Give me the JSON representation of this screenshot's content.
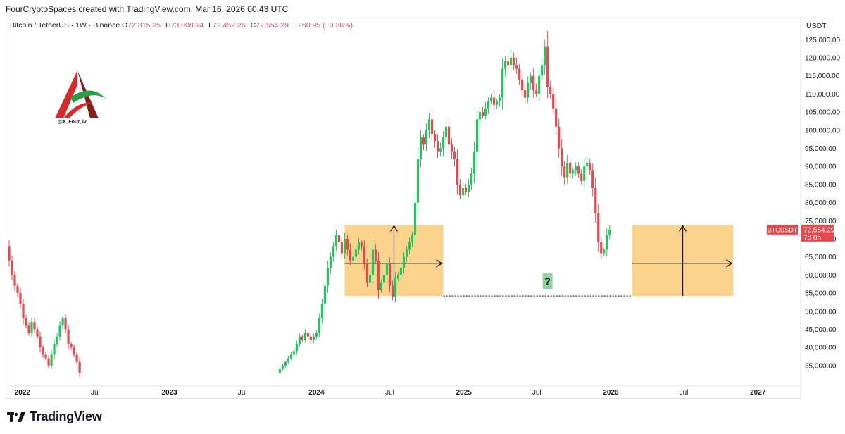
{
  "header": {
    "attribution": "FourCryptoSpaces created with TradingView.com, Mar 16, 2026 00:43 UTC"
  },
  "legend": {
    "symbol": "Bitcoin / TetherUS · 1W · Binance",
    "open_label": "O",
    "open": "72,815.25",
    "high_label": "H",
    "high": "73,008.94",
    "low_label": "L",
    "low": "72,452.26",
    "close_label": "C",
    "close": "72,554.29",
    "change": "−260.95 (−0.36%)"
  },
  "logo": {
    "handle": "@X_Four_iv"
  },
  "footer": {
    "brand": "TradingView"
  },
  "colors": {
    "up": "#26a69a",
    "up_bright": "#22c55e",
    "down": "#e5484d",
    "zone": "#fcd38d",
    "axis_text": "#131722"
  },
  "chart_data": {
    "type": "candlestick",
    "currency": "USDT",
    "ylim": [
      30500,
      127000
    ],
    "y_ticks": [
      35000,
      40000,
      45000,
      50000,
      55000,
      60000,
      65000,
      70000,
      75000,
      80000,
      85000,
      90000,
      95000,
      100000,
      105000,
      110000,
      115000,
      120000,
      125000
    ],
    "y_tick_labels": [
      "35,000.00",
      "40,000.00",
      "45,000.00",
      "50,000.00",
      "55,000.00",
      "60,000.00",
      "65,000.00",
      "70,000.00",
      "75,000.00",
      "80,000.00",
      "85,000.00",
      "90,000.00",
      "95,000.00",
      "100,000.00",
      "105,000.00",
      "110,000.00",
      "115,000.00",
      "120,000.00",
      "125,000.00"
    ],
    "x_ticks": [
      {
        "label": "2022",
        "date": "2022-01-01",
        "bold": true
      },
      {
        "label": "Jul",
        "date": "2022-07-01",
        "bold": false
      },
      {
        "label": "2023",
        "date": "2023-01-01",
        "bold": true
      },
      {
        "label": "Jul",
        "date": "2023-07-01",
        "bold": false
      },
      {
        "label": "2024",
        "date": "2024-01-01",
        "bold": true
      },
      {
        "label": "Jul",
        "date": "2024-07-01",
        "bold": false
      },
      {
        "label": "2025",
        "date": "2025-01-01",
        "bold": true
      },
      {
        "label": "Jul",
        "date": "2025-07-01",
        "bold": false
      },
      {
        "label": "2026",
        "date": "2026-01-01",
        "bold": true
      },
      {
        "label": "Jul",
        "date": "2026-07-01",
        "bold": false
      },
      {
        "label": "2027",
        "date": "2027-01-01",
        "bold": true
      }
    ],
    "x_range": [
      "2021-11-22",
      "2027-04-12"
    ],
    "segments": [
      {
        "start": "2021-11-22",
        "points": [
          68000,
          64000,
          60000,
          57000,
          55000,
          52000,
          48000,
          46000,
          44000,
          47000,
          45000,
          43000,
          40000,
          38000,
          37000,
          35000,
          38000,
          41000,
          43000,
          46000,
          48000,
          45000,
          41000,
          40000,
          38000,
          36000,
          33000
        ]
      },
      {
        "start": "2023-09-25",
        "points": [
          33000,
          34000,
          35000,
          36000,
          37000,
          38000,
          39000,
          41000,
          43000,
          42000,
          44000,
          43000,
          42000,
          43000,
          44000,
          48000,
          52000,
          57000,
          62000,
          65000,
          68000,
          71000,
          69000,
          66000,
          70000,
          67000,
          64000,
          65000,
          67000,
          69000,
          68000,
          63000,
          58000,
          60000,
          67000,
          64000,
          56000,
          58000,
          60000,
          63000,
          57000,
          54000,
          59000,
          60000,
          62000,
          65000,
          67000,
          69000,
          71000,
          80000,
          92000,
          98000,
          96000,
          100000,
          103000,
          99000,
          97000,
          94000,
          95000,
          98000,
          101000,
          96000,
          94000,
          92000,
          85000,
          82000,
          84000,
          83000,
          85000,
          88000,
          94000,
          103000,
          105000,
          104000,
          106000,
          108000,
          109000,
          107000,
          108000,
          109000,
          117000,
          119000,
          118000,
          120000,
          118000,
          117000,
          114000,
          111000,
          109000,
          113000,
          115000,
          111000,
          110000,
          115000,
          118000,
          123000,
          112000,
          110000,
          106000,
          101000,
          95000,
          90000,
          87000,
          91000,
          88000,
          89000,
          90000,
          88000,
          86000,
          90000,
          91000,
          89000,
          84000,
          77000,
          69000,
          66000,
          67000,
          71000,
          72554.29
        ]
      }
    ],
    "zones": [
      {
        "from": "2024-03-11",
        "to": "2024-11-11",
        "high": 73800,
        "low": 54200
      },
      {
        "from": "2026-02-23",
        "to": "2026-11-01",
        "high": 73800,
        "low": 54200
      }
    ],
    "annotations": {
      "dotted_line": {
        "from": "2024-11-11",
        "to": "2026-02-23",
        "value": 54200
      },
      "question_label": {
        "text": "?",
        "date": "2025-07-28",
        "value": 58300
      },
      "last_price_label": {
        "symbol": "BTCUSDT",
        "price": "72,554.29",
        "countdown": "7d 0h",
        "value": 72554.29
      }
    }
  }
}
